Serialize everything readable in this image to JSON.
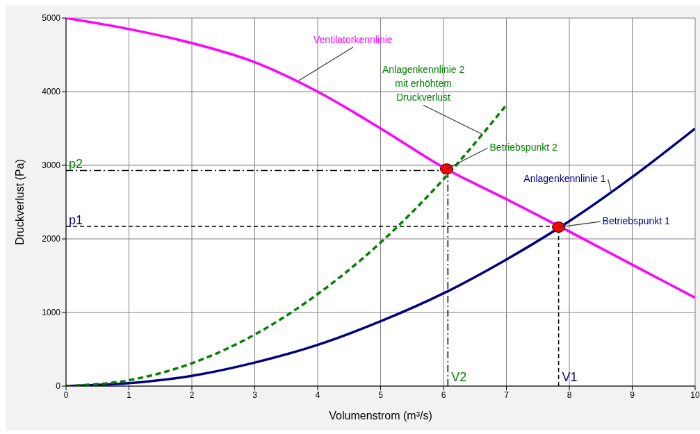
{
  "chart_data": {
    "type": "line",
    "xlabel": "Volumenstrom (m³/s)",
    "ylabel": "Druckverlust (Pa)",
    "xlim": [
      0,
      10
    ],
    "xticks": [
      0,
      1,
      2,
      3,
      4,
      5,
      6,
      7,
      8,
      9,
      10
    ],
    "ylim": [
      0,
      5000
    ],
    "yticks": [
      0,
      1000,
      2000,
      3000,
      4000,
      5000
    ],
    "grid": true,
    "legend": false,
    "marker": "none",
    "series": [
      {
        "color": "#ff00ff",
        "line_style": "solid",
        "x": [
          0,
          1,
          2,
          3,
          4,
          5,
          6,
          7,
          8,
          9,
          10
        ],
        "values": [
          5000,
          4850,
          4660,
          4400,
          4000,
          3500,
          2970,
          2540,
          2100,
          1650,
          1200
        ]
      },
      {
        "color": "#000080",
        "line_style": "solid",
        "x": [
          0,
          1,
          2,
          3,
          4,
          5,
          6,
          7,
          8,
          9,
          10
        ],
        "values": [
          0,
          40,
          140,
          320,
          560,
          880,
          1260,
          1720,
          2240,
          2840,
          3500
        ]
      },
      {
        "color": "#008000",
        "line_style": "dashed",
        "x": [
          0,
          1,
          2,
          3,
          4,
          5,
          6,
          7
        ],
        "values": [
          0,
          80,
          310,
          700,
          1250,
          1950,
          2810,
          3820
        ]
      },
      {
        "type": "scatter",
        "color": "#ff0000",
        "marker": "circle",
        "x": [
          6.05,
          7.83
        ],
        "values": [
          2950,
          2160
        ]
      }
    ],
    "ref_lines": [
      {
        "axis": "y",
        "value": 2930,
        "label": "p2",
        "color": "#000000",
        "line_style": "dashed"
      },
      {
        "axis": "x",
        "value": 6.07,
        "label": "V2",
        "color": "#000000",
        "line_style": "dashed"
      },
      {
        "axis": "y",
        "value": 2170,
        "label": "p1",
        "color": "#000000",
        "line_style": "dashed"
      },
      {
        "axis": "x",
        "value": 7.83,
        "label": "V1",
        "color": "#000000",
        "line_style": "dashed"
      }
    ],
    "annotations": [
      {
        "text": "Ventilatorkennlinie",
        "x": 3.7,
        "y": 4150
      },
      {
        "text": "Anlagenkennlinie 2\nmit erhöhtem\nDruckverlust",
        "x": 6.62,
        "y": 3420
      },
      {
        "text": "Betriebspunkt 2",
        "x": 6.05,
        "y": 2950
      },
      {
        "text": "Anlagenkennlinie 1",
        "x": 8.67,
        "y": 2630
      },
      {
        "text": "Betriebspunkt 1",
        "x": 7.83,
        "y": 2160
      }
    ]
  }
}
